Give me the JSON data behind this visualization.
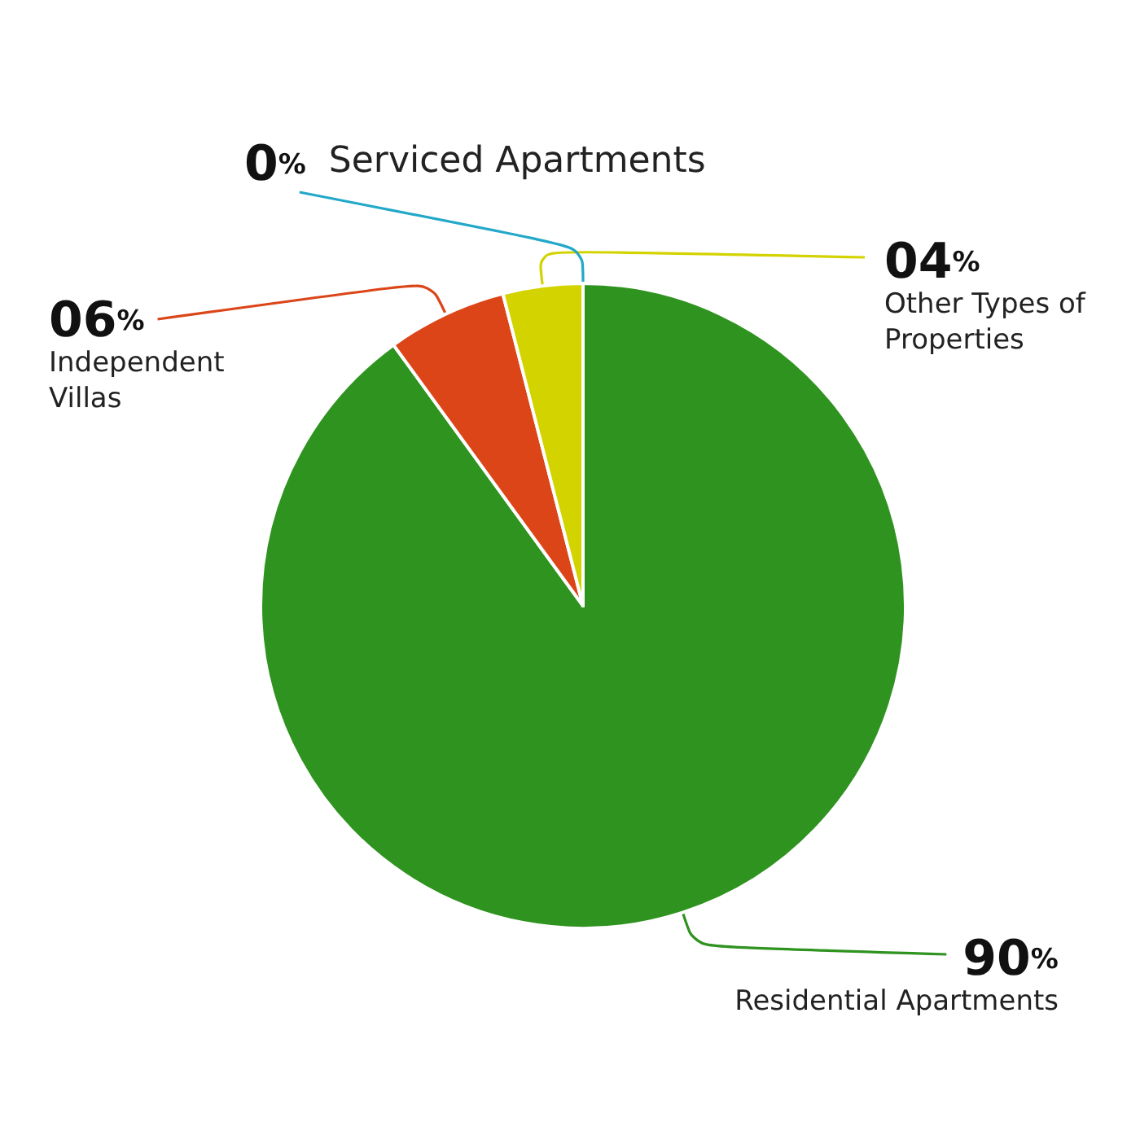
{
  "chart_data": {
    "type": "pie",
    "categories": [
      "Residential Apartments",
      "Independent Villas",
      "Other Types of Properties",
      "Serviced Apartments"
    ],
    "values": [
      90,
      6,
      4,
      0
    ],
    "colors": [
      "#2f931f",
      "#db4518",
      "#d3d300",
      "#22a8c8"
    ],
    "value_labels": [
      "90%",
      "06%",
      "04%",
      "0%"
    ]
  }
}
